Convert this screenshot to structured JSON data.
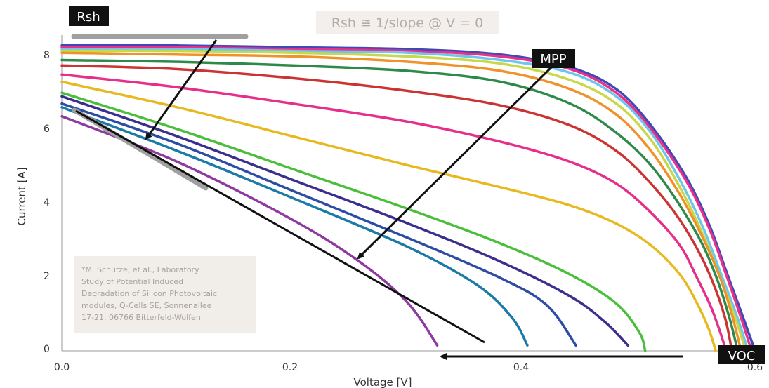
{
  "chart_data": {
    "type": "line",
    "xlabel": "Voltage [V]",
    "ylabel": "Current [A]",
    "xlim": [
      0,
      0.6
    ],
    "ylim": [
      0,
      8.5
    ],
    "x_ticks": [
      "0.0",
      "0.2",
      "0.4",
      "0.6"
    ],
    "y_ticks": [
      "0",
      "2",
      "4",
      "6",
      "8"
    ],
    "grid": false,
    "legend": "none",
    "series": [
      {
        "color": "#3f49b5",
        "points": [
          [
            0.0,
            8.4
          ],
          [
            0.1,
            8.4
          ],
          [
            0.2,
            8.35
          ],
          [
            0.3,
            8.3
          ],
          [
            0.38,
            8.15
          ],
          [
            0.44,
            7.8
          ],
          [
            0.48,
            7.2
          ],
          [
            0.51,
            6.2
          ],
          [
            0.54,
            4.8
          ],
          [
            0.56,
            3.5
          ],
          [
            0.575,
            2.2
          ],
          [
            0.59,
            0.9
          ],
          [
            0.6,
            0.0
          ]
        ]
      },
      {
        "color": "#e8318b",
        "points": [
          [
            0.0,
            8.35
          ],
          [
            0.1,
            8.35
          ],
          [
            0.2,
            8.3
          ],
          [
            0.3,
            8.25
          ],
          [
            0.38,
            8.1
          ],
          [
            0.44,
            7.75
          ],
          [
            0.48,
            7.1
          ],
          [
            0.51,
            6.1
          ],
          [
            0.54,
            4.7
          ],
          [
            0.56,
            3.4
          ],
          [
            0.575,
            2.1
          ],
          [
            0.588,
            0.9
          ],
          [
            0.597,
            0.0
          ]
        ]
      },
      {
        "color": "#6ec6ea",
        "points": [
          [
            0.0,
            8.3
          ],
          [
            0.1,
            8.3
          ],
          [
            0.2,
            8.25
          ],
          [
            0.3,
            8.2
          ],
          [
            0.38,
            8.0
          ],
          [
            0.44,
            7.65
          ],
          [
            0.48,
            7.0
          ],
          [
            0.51,
            6.0
          ],
          [
            0.535,
            4.7
          ],
          [
            0.555,
            3.4
          ],
          [
            0.572,
            2.0
          ],
          [
            0.585,
            0.9
          ],
          [
            0.594,
            0.0
          ]
        ]
      },
      {
        "color": "#c9d84a",
        "points": [
          [
            0.0,
            8.25
          ],
          [
            0.1,
            8.25
          ],
          [
            0.2,
            8.2
          ],
          [
            0.3,
            8.1
          ],
          [
            0.38,
            7.9
          ],
          [
            0.44,
            7.45
          ],
          [
            0.48,
            6.8
          ],
          [
            0.51,
            5.8
          ],
          [
            0.535,
            4.5
          ],
          [
            0.555,
            3.2
          ],
          [
            0.57,
            2.0
          ],
          [
            0.583,
            0.9
          ],
          [
            0.592,
            0.0
          ]
        ]
      },
      {
        "color": "#f0922a",
        "points": [
          [
            0.0,
            8.2
          ],
          [
            0.1,
            8.15
          ],
          [
            0.2,
            8.1
          ],
          [
            0.3,
            7.95
          ],
          [
            0.38,
            7.7
          ],
          [
            0.44,
            7.2
          ],
          [
            0.48,
            6.5
          ],
          [
            0.51,
            5.5
          ],
          [
            0.535,
            4.3
          ],
          [
            0.555,
            3.1
          ],
          [
            0.57,
            2.0
          ],
          [
            0.58,
            1.0
          ],
          [
            0.588,
            0.0
          ]
        ]
      },
      {
        "color": "#2e8a4a",
        "points": [
          [
            0.0,
            8.0
          ],
          [
            0.1,
            7.95
          ],
          [
            0.2,
            7.85
          ],
          [
            0.3,
            7.7
          ],
          [
            0.38,
            7.4
          ],
          [
            0.44,
            6.8
          ],
          [
            0.48,
            6.0
          ],
          [
            0.51,
            5.1
          ],
          [
            0.535,
            4.0
          ],
          [
            0.555,
            2.9
          ],
          [
            0.568,
            1.9
          ],
          [
            0.578,
            0.9
          ],
          [
            0.585,
            0.0
          ]
        ]
      },
      {
        "color": "#cc3333",
        "points": [
          [
            0.0,
            7.85
          ],
          [
            0.1,
            7.75
          ],
          [
            0.2,
            7.5
          ],
          [
            0.3,
            7.15
          ],
          [
            0.38,
            6.75
          ],
          [
            0.44,
            6.2
          ],
          [
            0.48,
            5.5
          ],
          [
            0.51,
            4.6
          ],
          [
            0.535,
            3.6
          ],
          [
            0.555,
            2.5
          ],
          [
            0.567,
            1.6
          ],
          [
            0.575,
            0.8
          ],
          [
            0.58,
            0.0
          ]
        ]
      },
      {
        "color": "#e62e8a",
        "points": [
          [
            0.0,
            7.6
          ],
          [
            0.1,
            7.25
          ],
          [
            0.2,
            6.8
          ],
          [
            0.3,
            6.3
          ],
          [
            0.38,
            5.75
          ],
          [
            0.44,
            5.2
          ],
          [
            0.48,
            4.6
          ],
          [
            0.51,
            3.8
          ],
          [
            0.535,
            2.9
          ],
          [
            0.55,
            2.0
          ],
          [
            0.562,
            1.2
          ],
          [
            0.57,
            0.5
          ],
          [
            0.575,
            0.0
          ]
        ]
      },
      {
        "color": "#e8b820",
        "points": [
          [
            0.0,
            7.4
          ],
          [
            0.1,
            6.7
          ],
          [
            0.2,
            5.9
          ],
          [
            0.3,
            5.1
          ],
          [
            0.38,
            4.5
          ],
          [
            0.44,
            4.0
          ],
          [
            0.48,
            3.5
          ],
          [
            0.51,
            2.9
          ],
          [
            0.535,
            2.1
          ],
          [
            0.55,
            1.3
          ],
          [
            0.56,
            0.6
          ],
          [
            0.566,
            0.0
          ]
        ]
      },
      {
        "color": "#4bbf3c",
        "points": [
          [
            0.0,
            7.1
          ],
          [
            0.1,
            6.1
          ],
          [
            0.2,
            5.0
          ],
          [
            0.3,
            3.9
          ],
          [
            0.38,
            2.95
          ],
          [
            0.44,
            2.1
          ],
          [
            0.48,
            1.3
          ],
          [
            0.5,
            0.5
          ],
          [
            0.505,
            0.0
          ]
        ]
      },
      {
        "color": "#3a2f8c",
        "points": [
          [
            0.0,
            7.0
          ],
          [
            0.1,
            5.9
          ],
          [
            0.2,
            4.7
          ],
          [
            0.3,
            3.5
          ],
          [
            0.38,
            2.45
          ],
          [
            0.44,
            1.5
          ],
          [
            0.47,
            0.8
          ],
          [
            0.49,
            0.15
          ]
        ]
      },
      {
        "color": "#2c4da3",
        "points": [
          [
            0.0,
            6.8
          ],
          [
            0.1,
            5.7
          ],
          [
            0.2,
            4.4
          ],
          [
            0.3,
            3.1
          ],
          [
            0.38,
            2.0
          ],
          [
            0.42,
            1.25
          ],
          [
            0.445,
            0.15
          ]
        ]
      },
      {
        "color": "#1a7aa8",
        "points": [
          [
            0.0,
            6.7
          ],
          [
            0.1,
            5.5
          ],
          [
            0.2,
            4.2
          ],
          [
            0.3,
            2.85
          ],
          [
            0.36,
            1.8
          ],
          [
            0.39,
            0.9
          ],
          [
            0.403,
            0.15
          ]
        ]
      },
      {
        "color": "#8e3aa0",
        "points": [
          [
            0.0,
            6.45
          ],
          [
            0.1,
            5.2
          ],
          [
            0.2,
            3.6
          ],
          [
            0.26,
            2.4
          ],
          [
            0.3,
            1.3
          ],
          [
            0.325,
            0.15
          ]
        ]
      }
    ],
    "annotations": {
      "rsh_label": "Rsh",
      "formula": "Rsh ≅ 1/slope @ V = 0",
      "mpp_label": "MPP",
      "voc_label": "VOC",
      "citation": [
        "*M. Schütze, et al., Laboratory",
        "Study of Potential Induced",
        "Degradation of Silicon Photovoltaic",
        "modules, Q-Cells SE, Sonnenallee",
        "17-21, 06766 Bitterfeld-Wolfen"
      ]
    }
  }
}
